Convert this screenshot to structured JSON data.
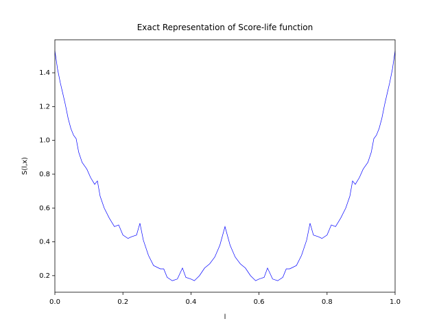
{
  "chart_data": {
    "type": "line",
    "title": "Exact Representation of Score-life function",
    "xlabel": "l",
    "ylabel": "S(l,x)",
    "x": [
      0,
      0.008,
      0.016,
      0.023,
      0.031,
      0.039,
      0.047,
      0.055,
      0.0625,
      0.07,
      0.08,
      0.094,
      0.105,
      0.117,
      0.125,
      0.133,
      0.145,
      0.16,
      0.175,
      0.1875,
      0.2,
      0.215,
      0.225,
      0.24,
      0.25,
      0.26,
      0.275,
      0.29,
      0.31,
      0.32,
      0.33,
      0.345,
      0.36,
      0.375,
      0.385,
      0.4,
      0.41,
      0.425,
      0.44,
      0.455,
      0.47,
      0.485,
      0.5,
      0.515,
      0.53,
      0.545,
      0.56,
      0.575,
      0.59,
      0.6,
      0.615,
      0.625,
      0.64,
      0.655,
      0.67,
      0.68,
      0.69,
      0.71,
      0.725,
      0.74,
      0.75,
      0.76,
      0.775,
      0.785,
      0.8,
      0.8125,
      0.825,
      0.84,
      0.855,
      0.867,
      0.875,
      0.883,
      0.895,
      0.906,
      0.92,
      0.93,
      0.9375,
      0.945,
      0.953,
      0.961,
      0.969,
      0.977,
      0.984,
      0.992,
      1
    ],
    "series": [
      {
        "name": "S",
        "color": "#0000ff",
        "values": [
          1.53,
          1.42,
          1.34,
          1.28,
          1.21,
          1.13,
          1.07,
          1.03,
          1.01,
          0.93,
          0.87,
          0.83,
          0.78,
          0.74,
          0.76,
          0.67,
          0.6,
          0.54,
          0.49,
          0.5,
          0.44,
          0.42,
          0.43,
          0.44,
          0.51,
          0.41,
          0.32,
          0.26,
          0.24,
          0.24,
          0.19,
          0.17,
          0.18,
          0.245,
          0.19,
          0.18,
          0.17,
          0.2,
          0.245,
          0.27,
          0.31,
          0.38,
          0.49,
          0.38,
          0.31,
          0.27,
          0.245,
          0.2,
          0.17,
          0.18,
          0.19,
          0.245,
          0.18,
          0.17,
          0.19,
          0.24,
          0.24,
          0.26,
          0.32,
          0.41,
          0.51,
          0.44,
          0.43,
          0.42,
          0.44,
          0.5,
          0.49,
          0.54,
          0.6,
          0.67,
          0.76,
          0.74,
          0.78,
          0.83,
          0.87,
          0.93,
          1.01,
          1.03,
          1.07,
          1.13,
          1.21,
          1.28,
          1.34,
          1.42,
          1.53
        ]
      }
    ],
    "xlim": [
      0,
      1
    ],
    "ylim": [
      0.102,
      1.595
    ],
    "xticks": [
      {
        "value": 0,
        "label": "0.0"
      },
      0.2,
      0.4,
      0.6,
      0.8,
      {
        "value": 1,
        "label": "1.0"
      }
    ],
    "yticks": [
      0.2,
      0.4,
      0.6,
      0.8,
      {
        "value": 1,
        "label": "1.0"
      },
      1.2,
      1.4
    ]
  }
}
